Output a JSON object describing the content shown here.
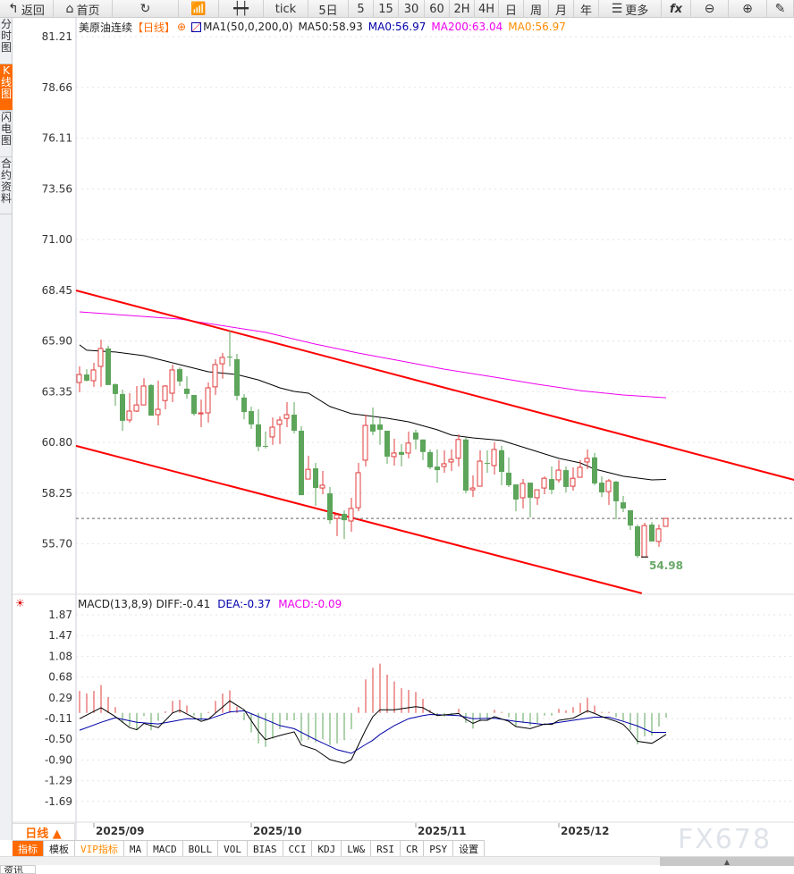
{
  "toolbar": {
    "items": [
      {
        "icon": "back-arrow-icon",
        "label": "返回"
      },
      {
        "icon": "home-icon",
        "label": "首页"
      },
      {
        "icon": "refresh-icon",
        "label": ""
      },
      {
        "icon": "indicator-chart-icon",
        "label": ""
      },
      {
        "icon": "candlestick-icon",
        "label": ""
      },
      {
        "label": "tick"
      },
      {
        "label": "5日"
      },
      {
        "label": "5"
      },
      {
        "label": "15"
      },
      {
        "label": "30"
      },
      {
        "label": "60"
      },
      {
        "label": "2H"
      },
      {
        "label": "4H"
      },
      {
        "label": "日"
      },
      {
        "label": "周"
      },
      {
        "label": "月"
      },
      {
        "label": "年"
      },
      {
        "icon": "menu-icon",
        "label": "更多"
      },
      {
        "icon": "fx-icon",
        "label": "fx"
      },
      {
        "icon": "zoom-out-icon",
        "label": ""
      },
      {
        "icon": "zoom-in-icon",
        "label": ""
      },
      {
        "icon": "draw-icon",
        "label": ""
      }
    ]
  },
  "sidebar": {
    "items": [
      {
        "label": "分时图"
      },
      {
        "label": "K线图",
        "active": true
      },
      {
        "label": "闪电图"
      },
      {
        "label": "合约资料"
      }
    ]
  },
  "header": {
    "symbol": "美原油连续",
    "period": "【日线】",
    "ma_label": "MA1(50,0,200,0)",
    "ma50": "MA50:58.93",
    "ma0a": "MA0:56.97",
    "ma200": "MA200:63.04",
    "ma0b": "MA0:56.97"
  },
  "macd_header": {
    "label": "MACD(13,8,9)",
    "diff": "DIFF:-0.41",
    "dea": "DEA:-0.37",
    "macd": "MACD:-0.09"
  },
  "colors": {
    "up": "#e03c3c",
    "down": "#5ca55a",
    "ma50": "#000000",
    "ma200": "#ee00ee",
    "trend": "#ff0000",
    "dea": "#0000aa",
    "dash": "#1e6fd9",
    "accent": "#ff6a00"
  },
  "chart_data": [
    {
      "type": "candlestick",
      "price_axis": {
        "ticks": [
          "81.21",
          "78.66",
          "76.11",
          "73.56",
          "71.00",
          "68.45",
          "65.90",
          "63.35",
          "60.80",
          "58.25",
          "55.70"
        ],
        "range": [
          53.2,
          81.21
        ]
      },
      "x_ticks": [
        {
          "bar": 2,
          "label": "2025/09"
        },
        {
          "bar": 24,
          "label": "2025/10"
        },
        {
          "bar": 47,
          "label": "2025/11"
        },
        {
          "bar": 67,
          "label": "2025/12"
        }
      ],
      "ohlc": [
        [
          63.81,
          64.62,
          63.32,
          64.21
        ],
        [
          64.21,
          64.48,
          63.86,
          63.9
        ],
        [
          63.9,
          64.8,
          63.59,
          64.44
        ],
        [
          64.62,
          65.97,
          63.59,
          65.52
        ],
        [
          65.52,
          65.66,
          63.68,
          63.68
        ],
        [
          63.72,
          63.77,
          62.64,
          63.23
        ],
        [
          63.23,
          63.45,
          61.38,
          61.88
        ],
        [
          61.92,
          63.27,
          61.79,
          62.37
        ],
        [
          62.37,
          63.63,
          62.32,
          62.68
        ],
        [
          62.68,
          64.03,
          62.68,
          63.63
        ],
        [
          63.68,
          63.72,
          62.14,
          62.14
        ],
        [
          62.19,
          63.9,
          61.65,
          62.46
        ],
        [
          62.9,
          63.68,
          62.46,
          63.63
        ],
        [
          63.27,
          64.71,
          62.82,
          64.44
        ],
        [
          64.48,
          64.57,
          63.63,
          63.86
        ],
        [
          63.5,
          64.12,
          63.0,
          63.23
        ],
        [
          63.18,
          63.18,
          62.14,
          62.23
        ],
        [
          62.23,
          62.95,
          61.56,
          62.28
        ],
        [
          62.28,
          63.81,
          61.79,
          63.54
        ],
        [
          63.59,
          64.98,
          63.18,
          64.71
        ],
        [
          64.75,
          65.3,
          64.0,
          65.07
        ],
        [
          65.11,
          66.42,
          64.62,
          65.07
        ],
        [
          64.98,
          65.25,
          62.91,
          63.14
        ],
        [
          63.05,
          63.23,
          61.96,
          62.32
        ],
        [
          62.37,
          62.59,
          61.47,
          61.7
        ],
        [
          61.7,
          62.46,
          60.35,
          60.58
        ],
        [
          60.62,
          61.34,
          60.49,
          60.58
        ],
        [
          61.07,
          62.05,
          60.67,
          61.56
        ],
        [
          61.7,
          62.1,
          60.71,
          61.92
        ],
        [
          62.0,
          62.82,
          61.56,
          62.19
        ],
        [
          62.19,
          62.82,
          61.25,
          61.38
        ],
        [
          61.38,
          61.61,
          58.14,
          58.14
        ],
        [
          58.95,
          60.13,
          58.95,
          59.44
        ],
        [
          59.49,
          59.76,
          57.6,
          58.5
        ],
        [
          58.5,
          59.36,
          58.19,
          58.64
        ],
        [
          58.23,
          58.55,
          56.7,
          56.88
        ],
        [
          56.97,
          57.2,
          56.08,
          57.15
        ],
        [
          57.2,
          57.38,
          55.94,
          56.88
        ],
        [
          56.84,
          58.01,
          56.3,
          57.47
        ],
        [
          57.51,
          59.76,
          57.33,
          59.27
        ],
        [
          59.9,
          62.19,
          59.58,
          61.65
        ],
        [
          61.7,
          62.55,
          61.16,
          61.34
        ],
        [
          61.7,
          62.05,
          60.67,
          61.43
        ],
        [
          61.38,
          61.38,
          59.72,
          60.08
        ],
        [
          60.08,
          60.98,
          59.63,
          60.26
        ],
        [
          60.31,
          60.71,
          59.58,
          60.17
        ],
        [
          60.26,
          61.34,
          59.99,
          60.76
        ],
        [
          61.29,
          61.43,
          60.44,
          60.94
        ],
        [
          60.94,
          60.94,
          59.9,
          60.31
        ],
        [
          60.31,
          60.44,
          59.45,
          59.54
        ],
        [
          59.58,
          60.44,
          58.77,
          59.4
        ],
        [
          59.58,
          60.4,
          59.27,
          59.72
        ],
        [
          59.81,
          60.44,
          59.36,
          59.94
        ],
        [
          60.0,
          61.2,
          59.58,
          60.94
        ],
        [
          60.94,
          61.03,
          58.23,
          58.37
        ],
        [
          58.41,
          59.14,
          58.05,
          58.5
        ],
        [
          58.59,
          60.4,
          58.59,
          59.85
        ],
        [
          59.76,
          60.4,
          59.27,
          59.72
        ],
        [
          59.63,
          60.8,
          59.18,
          60.44
        ],
        [
          60.4,
          60.62,
          58.64,
          59.31
        ],
        [
          59.27,
          60.04,
          58.55,
          58.64
        ],
        [
          58.68,
          58.68,
          57.33,
          57.92
        ],
        [
          58.01,
          58.95,
          57.47,
          58.73
        ],
        [
          58.77,
          58.77,
          57.02,
          58.01
        ],
        [
          58.01,
          58.41,
          57.65,
          58.41
        ],
        [
          58.5,
          59.08,
          58.19,
          58.99
        ],
        [
          58.95,
          59.58,
          58.19,
          58.41
        ],
        [
          58.91,
          59.9,
          58.77,
          59.4
        ],
        [
          59.4,
          59.58,
          58.28,
          58.55
        ],
        [
          58.59,
          59.54,
          58.37,
          58.99
        ],
        [
          59.04,
          59.9,
          59.04,
          59.54
        ],
        [
          59.81,
          60.44,
          59.45,
          59.99
        ],
        [
          60.04,
          60.26,
          58.64,
          58.73
        ],
        [
          58.77,
          59.08,
          58.05,
          58.28
        ],
        [
          58.32,
          58.95,
          57.65,
          58.86
        ],
        [
          58.82,
          58.86,
          56.93,
          57.83
        ],
        [
          57.78,
          58.1,
          57.29,
          57.47
        ],
        [
          57.38,
          57.38,
          56.39,
          56.61
        ],
        [
          56.57,
          56.66,
          54.98,
          55.08
        ],
        [
          55.03,
          56.75,
          55.03,
          56.61
        ],
        [
          56.66,
          56.79,
          55.81,
          55.81
        ],
        [
          55.81,
          56.66,
          55.54,
          56.44
        ],
        [
          56.57,
          56.93,
          56.57,
          56.97
        ]
      ],
      "ma50": [
        [
          0,
          65.7
        ],
        [
          1,
          65.43
        ],
        [
          5,
          65.34
        ],
        [
          9,
          65.16
        ],
        [
          11,
          64.98
        ],
        [
          15,
          64.62
        ],
        [
          18,
          64.35
        ],
        [
          22,
          64.21
        ],
        [
          25,
          63.94
        ],
        [
          28,
          63.54
        ],
        [
          30,
          63.36
        ],
        [
          32,
          63.27
        ],
        [
          35,
          62.6
        ],
        [
          38,
          62.24
        ],
        [
          40,
          62.15
        ],
        [
          43,
          62.01
        ],
        [
          46,
          61.83
        ],
        [
          50,
          61.43
        ],
        [
          52,
          61.16
        ],
        [
          55,
          61.02
        ],
        [
          59,
          60.89
        ],
        [
          63,
          60.44
        ],
        [
          67,
          59.99
        ],
        [
          70,
          59.76
        ],
        [
          72,
          59.45
        ],
        [
          76,
          59.09
        ],
        [
          80,
          58.91
        ],
        [
          82,
          58.93
        ]
      ],
      "ma200": [
        [
          0,
          67.36
        ],
        [
          14,
          67.0
        ],
        [
          26,
          66.33
        ],
        [
          33,
          65.74
        ],
        [
          39,
          65.29
        ],
        [
          45,
          64.89
        ],
        [
          51,
          64.48
        ],
        [
          58,
          64.08
        ],
        [
          64,
          63.72
        ],
        [
          70,
          63.4
        ],
        [
          76,
          63.18
        ],
        [
          82,
          63.04
        ]
      ],
      "trendlines": [
        [
          [
            -0.5,
            68.44
          ],
          [
            99.9,
            58.91
          ]
        ],
        [
          [
            -0.5,
            60.62
          ],
          [
            78.6,
            53.2
          ]
        ]
      ],
      "last_price_line": 56.97,
      "low_marker": {
        "bar": 79,
        "label": "54.98"
      }
    },
    {
      "type": "macd",
      "axis_ticks": [
        "1.87",
        "1.47",
        "1.08",
        "0.68",
        "0.29",
        "-0.11",
        "-0.50",
        "-0.90",
        "-1.29",
        "-1.69"
      ],
      "range": [
        -1.69,
        1.87
      ],
      "histogram": [
        0.42,
        0.37,
        0.42,
        0.53,
        0.3,
        0.11,
        -0.19,
        -0.25,
        -0.32,
        -0.06,
        -0.33,
        -0.15,
        0.03,
        0.23,
        0.25,
        0.14,
        -0.05,
        -0.14,
        0.02,
        0.23,
        0.37,
        0.43,
        0.12,
        -0.14,
        -0.37,
        -0.58,
        -0.65,
        -0.49,
        -0.31,
        -0.14,
        -0.14,
        -0.54,
        -0.51,
        -0.56,
        -0.5,
        -0.61,
        -0.58,
        -0.52,
        -0.31,
        0.11,
        0.64,
        0.86,
        0.94,
        0.73,
        0.6,
        0.47,
        0.44,
        0.4,
        0.27,
        0.06,
        -0.05,
        -0.07,
        -0.05,
        0.08,
        -0.19,
        -0.3,
        -0.16,
        -0.14,
        0.06,
        0.02,
        -0.08,
        -0.25,
        -0.19,
        -0.24,
        -0.19,
        -0.05,
        -0.05,
        0.08,
        0.05,
        0.11,
        0.19,
        0.29,
        0.14,
        0.02,
        0.02,
        -0.08,
        -0.15,
        -0.33,
        -0.6,
        -0.45,
        -0.43,
        -0.26,
        -0.09
      ],
      "diff": [
        [
          0,
          -0.11
        ],
        [
          3,
          0.1
        ],
        [
          5,
          -0.07
        ],
        [
          7,
          -0.28
        ],
        [
          8,
          -0.32
        ],
        [
          9,
          -0.2
        ],
        [
          11,
          -0.28
        ],
        [
          13,
          0.0
        ],
        [
          14,
          0.05
        ],
        [
          15,
          -0.02
        ],
        [
          17,
          -0.16
        ],
        [
          18,
          -0.12
        ],
        [
          21,
          0.23
        ],
        [
          23,
          0.06
        ],
        [
          25,
          -0.35
        ],
        [
          26,
          -0.51
        ],
        [
          28,
          -0.43
        ],
        [
          30,
          -0.36
        ],
        [
          31,
          -0.61
        ],
        [
          33,
          -0.7
        ],
        [
          35,
          -0.89
        ],
        [
          37,
          -0.96
        ],
        [
          38,
          -0.89
        ],
        [
          40,
          -0.32
        ],
        [
          41,
          -0.07
        ],
        [
          42,
          0.06
        ],
        [
          44,
          0.06
        ],
        [
          46,
          0.1
        ],
        [
          47,
          0.12
        ],
        [
          48,
          0.1
        ],
        [
          49,
          0.02
        ],
        [
          50,
          -0.05
        ],
        [
          53,
          -0.01
        ],
        [
          54,
          -0.12
        ],
        [
          55,
          -0.2
        ],
        [
          56,
          -0.14
        ],
        [
          57,
          -0.14
        ],
        [
          58,
          -0.07
        ],
        [
          60,
          -0.16
        ],
        [
          61,
          -0.26
        ],
        [
          63,
          -0.3
        ],
        [
          65,
          -0.21
        ],
        [
          66,
          -0.22
        ],
        [
          67,
          -0.14
        ],
        [
          69,
          -0.1
        ],
        [
          70,
          -0.03
        ],
        [
          71,
          0.04
        ],
        [
          72,
          -0.01
        ],
        [
          73,
          -0.07
        ],
        [
          75,
          -0.16
        ],
        [
          76,
          -0.22
        ],
        [
          77,
          -0.36
        ],
        [
          78,
          -0.54
        ],
        [
          80,
          -0.58
        ],
        [
          81,
          -0.5
        ],
        [
          82,
          -0.41
        ]
      ],
      "dea": [
        [
          0,
          -0.33
        ],
        [
          3,
          -0.18
        ],
        [
          5,
          -0.09
        ],
        [
          8,
          -0.18
        ],
        [
          11,
          -0.21
        ],
        [
          13,
          -0.16
        ],
        [
          15,
          -0.11
        ],
        [
          18,
          -0.12
        ],
        [
          21,
          0.02
        ],
        [
          23,
          0.04
        ],
        [
          25,
          -0.07
        ],
        [
          28,
          -0.24
        ],
        [
          30,
          -0.3
        ],
        [
          33,
          -0.51
        ],
        [
          36,
          -0.7
        ],
        [
          38,
          -0.77
        ],
        [
          40,
          -0.6
        ],
        [
          41,
          -0.52
        ],
        [
          42,
          -0.41
        ],
        [
          44,
          -0.24
        ],
        [
          46,
          -0.11
        ],
        [
          48,
          -0.05
        ],
        [
          49,
          -0.03
        ],
        [
          53,
          -0.05
        ],
        [
          55,
          -0.11
        ],
        [
          58,
          -0.1
        ],
        [
          61,
          -0.16
        ],
        [
          65,
          -0.22
        ],
        [
          69,
          -0.14
        ],
        [
          72,
          -0.08
        ],
        [
          74,
          -0.08
        ],
        [
          76,
          -0.16
        ],
        [
          78,
          -0.25
        ],
        [
          80,
          -0.37
        ],
        [
          82,
          -0.37
        ]
      ]
    }
  ],
  "period_selector": "日线 ▲",
  "tabs": [
    "指标",
    "模板",
    "VIP指标",
    "MA",
    "MACD",
    "BOLL",
    "VOL",
    "BIAS",
    "CCI",
    "KDJ",
    "LW&",
    "RSI",
    "CR",
    "PSY",
    "设置"
  ],
  "watermark": "FX678",
  "bottom_tab": "资讯"
}
